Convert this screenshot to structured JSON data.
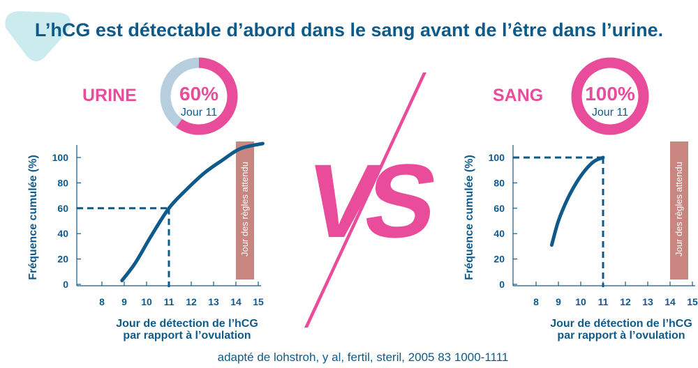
{
  "title": "L’hCG est détectable d’abord dans le sang avant de l’être dans l’urine.",
  "vs_label": "VS",
  "source": "adapté de lohstroh, y al, fertil, steril, 2005 83 1000-1111",
  "colors": {
    "navy": "#0e5a8a",
    "pink": "#e84c9b",
    "ring_bg": "#b7cede",
    "band": "#c9857f",
    "teal": "#bfe6ea"
  },
  "chart_data": [
    {
      "type": "line",
      "label": "URINE",
      "donut": {
        "value": 60,
        "value_label": "60%",
        "day_label": "Jour 11"
      },
      "ylabel": "Fréquence cumulée (%)",
      "xlabel_line1": "Jour de détection de l’hCG",
      "xlabel_line2": "par rapport à l’ovulation",
      "band_label": "Jour des règles attendu",
      "band": [
        14,
        14.8
      ],
      "xlim": [
        7,
        15
      ],
      "ylim": [
        0,
        100
      ],
      "xticks": [
        8,
        9,
        10,
        11,
        12,
        13,
        14,
        15
      ],
      "yticks": [
        0,
        20,
        40,
        60,
        80,
        100
      ],
      "reference": {
        "x": 11,
        "y": 60
      },
      "series": [
        {
          "x": [
            8.9,
            9.5,
            10.2,
            11,
            11.8,
            12.6,
            13.4,
            14.2,
            15.2
          ],
          "y": [
            3,
            17,
            38,
            60,
            75,
            88,
            98,
            107,
            111
          ]
        }
      ]
    },
    {
      "type": "line",
      "label": "SANG",
      "donut": {
        "value": 100,
        "value_label": "100%",
        "day_label": "Jour 11"
      },
      "ylabel": "Fréquence cumulée (%)",
      "xlabel_line1": "Jour de détection de l’hCG",
      "xlabel_line2": "par rapport à l’ovulation",
      "band_label": "Jour des règles attendu",
      "band": [
        14,
        14.8
      ],
      "xlim": [
        7,
        15
      ],
      "ylim": [
        0,
        100
      ],
      "xticks": [
        8,
        9,
        10,
        11,
        12,
        13,
        14,
        15
      ],
      "yticks": [
        0,
        20,
        40,
        60,
        80,
        100
      ],
      "reference": {
        "x": 11,
        "y": 100
      },
      "series": [
        {
          "x": [
            8.7,
            9.0,
            9.4,
            9.8,
            10.2,
            10.6,
            11
          ],
          "y": [
            31,
            50,
            67,
            80,
            90,
            97,
            100
          ]
        }
      ]
    }
  ]
}
